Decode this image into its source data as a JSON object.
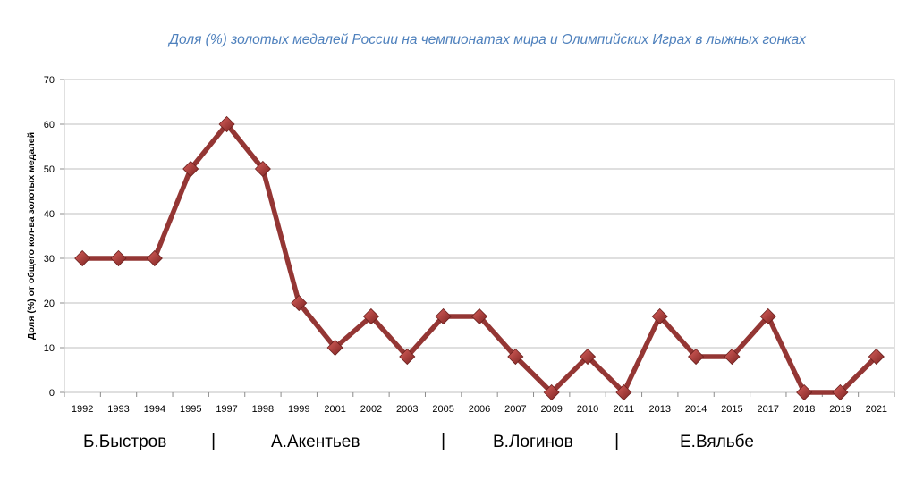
{
  "chart_data": {
    "type": "line",
    "title": "Доля (%) золотых медалей России на чемпионатах мира и Олимпийских Играх в лыжных гонках",
    "ylabel": "Доля (%) от  общего кол-ва золотых медалей",
    "xlabel": "",
    "ylim": [
      0,
      70
    ],
    "yticks": [
      "0",
      "10",
      "20",
      "30",
      "40",
      "50",
      "60",
      "70"
    ],
    "grid": true,
    "legend": "none",
    "categories": [
      "1992",
      "1993",
      "1994",
      "1995",
      "1997",
      "1998",
      "1999",
      "2001",
      "2002",
      "2003",
      "2005",
      "2006",
      "2007",
      "2009",
      "2010",
      "2011",
      "2013",
      "2014",
      "2015",
      "2017",
      "2018",
      "2019",
      "2021"
    ],
    "series": [
      {
        "values": [
          30,
          30,
          30,
          50,
          60,
          50,
          20,
          10,
          17,
          8,
          17,
          17,
          8,
          0,
          8,
          0,
          17,
          8,
          8,
          17,
          0,
          0,
          8
        ]
      }
    ],
    "line_color": "#943634",
    "marker": "diamond"
  },
  "coaches": {
    "c1": "Б.Быстров",
    "c2": "А.Акентьев",
    "c3": "В.Логинов",
    "c4": "Е.Вяльбе",
    "separator": "|"
  }
}
